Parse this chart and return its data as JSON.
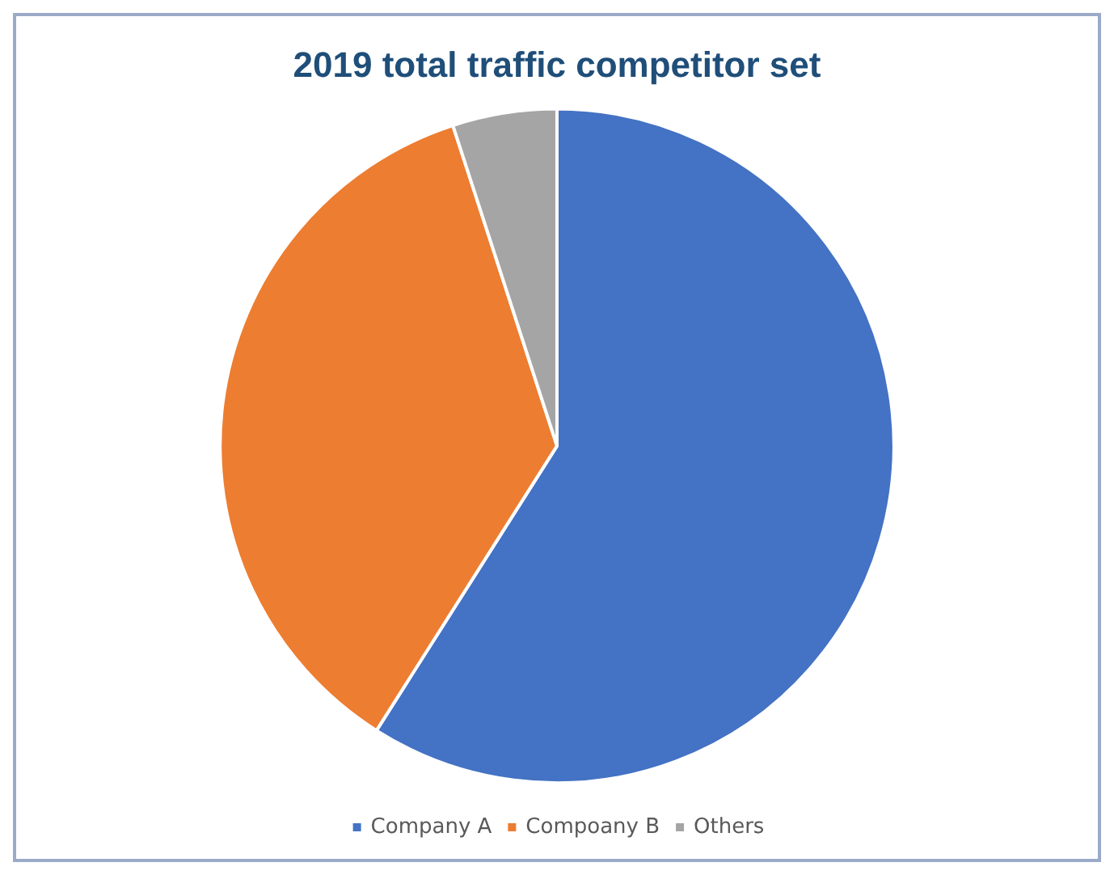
{
  "chart_data": {
    "type": "pie",
    "title": "2019 total traffic competitor set",
    "categories": [
      "Company A",
      "Compoany B",
      "Others"
    ],
    "values": [
      59,
      36,
      5
    ],
    "colors": [
      "#4472c4",
      "#ed7d31",
      "#a5a5a5"
    ],
    "legend": "bottom"
  }
}
